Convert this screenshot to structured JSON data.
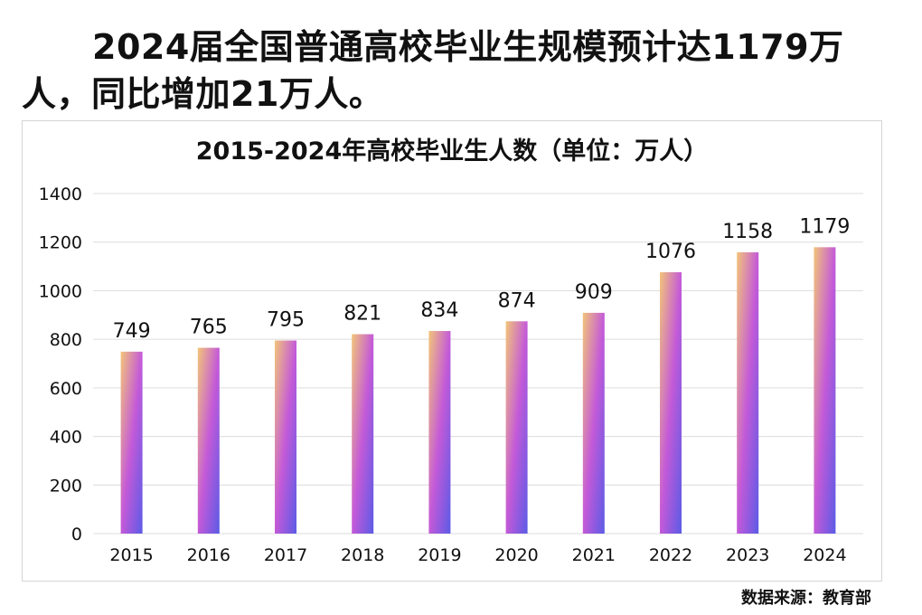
{
  "headline": "2024届全国普通高校毕业生规模预计达1179万人，同比增加21万人。",
  "source": "数据来源：教育部",
  "chart_data": {
    "type": "bar",
    "title": "2015-2024年高校毕业生人数（单位：万人）",
    "categories": [
      "2015",
      "2016",
      "2017",
      "2018",
      "2019",
      "2020",
      "2021",
      "2022",
      "2023",
      "2024"
    ],
    "values": [
      749,
      765,
      795,
      821,
      834,
      874,
      909,
      1076,
      1158,
      1179
    ],
    "ylim": [
      0,
      1400
    ],
    "yticks": [
      0,
      200,
      400,
      600,
      800,
      1000,
      1200,
      1400
    ],
    "grid": true,
    "legend": "none",
    "bar_gradient": [
      "#f2c479",
      "#c45ad8",
      "#5b5be6"
    ]
  }
}
